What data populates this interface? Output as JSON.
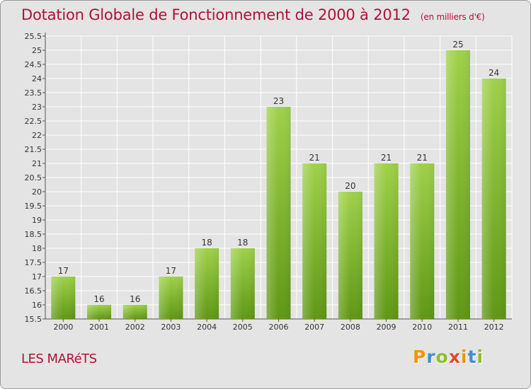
{
  "title": "Dotation Globale de Fonctionnement de 2000 à 2012",
  "unit": "(en milliers d'€)",
  "commune": "LES MARéTS",
  "logo": {
    "letters": [
      "P",
      "r",
      "o",
      "x",
      "i",
      "t",
      "i"
    ],
    "colors": [
      "#f29400",
      "#3d8fd1",
      "#8bbf2a",
      "#e8462b",
      "#f29400",
      "#3d8fd1",
      "#8bbf2a"
    ]
  },
  "colors": {
    "title": "#b0103a",
    "bar_light": "#9fd14a",
    "bar_dark": "#5f9714",
    "grid": "#ffffff",
    "background": "#e4e4e4"
  },
  "chart_data": {
    "type": "bar",
    "categories": [
      "2000",
      "2001",
      "2002",
      "2003",
      "2004",
      "2005",
      "2006",
      "2007",
      "2008",
      "2009",
      "2010",
      "2011",
      "2012"
    ],
    "values": [
      17,
      16,
      16,
      17,
      18,
      18,
      23,
      21,
      20,
      21,
      21,
      25,
      24
    ],
    "ylim": [
      15.5,
      25.5
    ],
    "yticks": [
      "15.5",
      "16",
      "16.5",
      "17",
      "17.5",
      "18",
      "18.5",
      "19",
      "19.5",
      "20",
      "20.5",
      "21",
      "21.5",
      "22",
      "22.5",
      "23",
      "23.5",
      "24",
      "24.5",
      "25",
      "25.5"
    ],
    "grid": true
  }
}
